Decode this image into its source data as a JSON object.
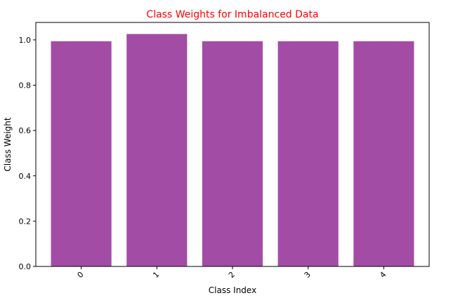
{
  "chart_data": {
    "type": "bar",
    "title": "Class Weights for Imbalanced Data",
    "xlabel": "Class Index",
    "ylabel": "Class Weight",
    "categories": [
      "0",
      "1",
      "2",
      "3",
      "4"
    ],
    "values": [
      0.994,
      1.026,
      0.994,
      0.994,
      0.994
    ],
    "ylim": [
      0,
      1.077
    ],
    "yticks": [
      "0.0",
      "0.2",
      "0.4",
      "0.6",
      "0.8",
      "1.0"
    ],
    "xtick_rotation_deg": 45,
    "grid": false,
    "legend": "none",
    "colors": {
      "bar": "#a34ca6",
      "title": "#ff0000",
      "axis": "#000000"
    }
  }
}
